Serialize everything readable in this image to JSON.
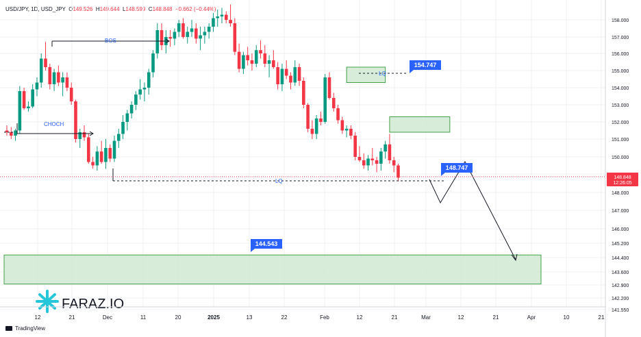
{
  "header": {
    "symbol": "USD/JPY, 1D, USD_JPY",
    "o_label": "O",
    "o_value": "149.526",
    "h_label": "H",
    "h_value": "149.644",
    "l_label": "L",
    "l_value": "148.599",
    "c_label": "C",
    "c_value": "148.848",
    "change": "−0.662 (−0.44%)"
  },
  "footer": {
    "brand": "TradingView"
  },
  "watermark": {
    "text": "FARAZ.IO"
  },
  "colors": {
    "bull": "#089981",
    "bear": "#f23645",
    "zone_fill": "#c8e6c9",
    "zone_stroke": "#43a047",
    "tag": "#2962ff",
    "text_blue": "#2962ff"
  },
  "chart_data": {
    "type": "candlestick",
    "x_ticks": [
      "12",
      "21",
      "Dec",
      "11",
      "20",
      "2025",
      "13",
      "22",
      "Feb",
      "12",
      "21",
      "Mar",
      "12",
      "21",
      "Apr",
      "10",
      "21"
    ],
    "y_ticks": [
      "158.000",
      "157.000",
      "156.000",
      "155.000",
      "154.000",
      "153.000",
      "152.000",
      "151.000",
      "150.000",
      "149.000",
      "148.000",
      "147.000",
      "146.000",
      "145.200",
      "144.400",
      "143.600",
      "142.900",
      "142.200",
      "141.550"
    ],
    "current_price": "148.848",
    "countdown": "12:26:05",
    "annotations": {
      "bos": "BOS",
      "choch": "CHOCH",
      "lq_low": "LQ",
      "lq_high": "LQ",
      "tag_high": "154.747",
      "tag_current": "148.747",
      "tag_target": "144.543"
    },
    "candles": [
      [
        151.5,
        151.8,
        151.2,
        151.4
      ],
      [
        151.4,
        151.7,
        151.0,
        151.2
      ],
      [
        151.2,
        151.6,
        150.9,
        151.5
      ],
      [
        151.5,
        154.1,
        151.3,
        153.8
      ],
      [
        153.8,
        154.0,
        152.7,
        152.8
      ],
      [
        152.8,
        153.2,
        152.6,
        152.9
      ],
      [
        152.9,
        154.2,
        152.8,
        153.9
      ],
      [
        153.9,
        154.6,
        153.5,
        154.3
      ],
      [
        154.3,
        156.0,
        154.0,
        155.7
      ],
      [
        155.7,
        156.7,
        155.0,
        155.2
      ],
      [
        155.2,
        155.4,
        153.9,
        154.2
      ],
      [
        154.2,
        155.1,
        153.8,
        154.9
      ],
      [
        154.9,
        155.3,
        154.1,
        154.3
      ],
      [
        154.3,
        154.9,
        153.5,
        154.6
      ],
      [
        154.6,
        154.9,
        153.8,
        154.0
      ],
      [
        154.0,
        154.3,
        153.0,
        153.2
      ],
      [
        153.2,
        153.3,
        150.8,
        151.0
      ],
      [
        151.0,
        151.6,
        150.5,
        151.4
      ],
      [
        151.4,
        151.8,
        150.9,
        151.1
      ],
      [
        151.1,
        151.3,
        149.6,
        149.7
      ],
      [
        149.7,
        150.0,
        149.3,
        149.5
      ],
      [
        149.5,
        150.6,
        149.2,
        150.3
      ],
      [
        150.3,
        150.9,
        149.6,
        149.7
      ],
      [
        149.7,
        151.0,
        149.3,
        150.5
      ],
      [
        150.5,
        150.7,
        149.7,
        149.9
      ],
      [
        149.9,
        151.2,
        149.7,
        150.9
      ],
      [
        150.9,
        151.6,
        150.5,
        151.3
      ],
      [
        151.3,
        152.4,
        151.0,
        152.0
      ],
      [
        152.0,
        152.7,
        151.5,
        152.5
      ],
      [
        152.5,
        153.2,
        152.2,
        153.0
      ],
      [
        153.0,
        153.8,
        152.7,
        153.6
      ],
      [
        153.6,
        154.5,
        153.3,
        153.9
      ],
      [
        153.9,
        154.3,
        153.2,
        154.0
      ],
      [
        154.0,
        155.1,
        153.6,
        154.9
      ],
      [
        154.9,
        156.2,
        154.6,
        156.0
      ],
      [
        156.0,
        157.8,
        155.7,
        157.4
      ],
      [
        157.4,
        157.8,
        156.2,
        156.5
      ],
      [
        156.5,
        157.4,
        156.0,
        157.0
      ],
      [
        157.0,
        157.4,
        156.4,
        156.9
      ],
      [
        156.9,
        157.5,
        156.5,
        157.3
      ],
      [
        157.3,
        158.0,
        157.0,
        157.8
      ],
      [
        157.8,
        158.1,
        156.9,
        157.0
      ],
      [
        157.0,
        157.6,
        156.6,
        157.3
      ],
      [
        157.3,
        158.0,
        157.0,
        157.5
      ],
      [
        157.5,
        157.8,
        156.6,
        156.9
      ],
      [
        156.9,
        157.6,
        156.2,
        157.1
      ],
      [
        157.1,
        157.6,
        156.6,
        157.3
      ],
      [
        157.3,
        157.8,
        156.9,
        157.6
      ],
      [
        157.6,
        158.4,
        157.3,
        158.1
      ],
      [
        158.1,
        158.6,
        157.6,
        158.2
      ],
      [
        158.2,
        158.7,
        157.8,
        158.3
      ],
      [
        158.3,
        158.5,
        157.8,
        158.0
      ],
      [
        158.0,
        158.9,
        157.6,
        157.8
      ],
      [
        157.8,
        158.1,
        155.9,
        156.1
      ],
      [
        156.1,
        156.6,
        154.9,
        155.1
      ],
      [
        155.1,
        156.1,
        154.8,
        155.9
      ],
      [
        155.9,
        156.4,
        155.3,
        155.6
      ],
      [
        155.6,
        156.0,
        155.0,
        155.4
      ],
      [
        155.4,
        156.5,
        155.2,
        156.2
      ],
      [
        156.2,
        156.8,
        155.7,
        156.0
      ],
      [
        156.0,
        156.5,
        155.2,
        155.4
      ],
      [
        155.4,
        155.9,
        154.6,
        155.6
      ],
      [
        155.6,
        156.2,
        155.1,
        155.2
      ],
      [
        155.2,
        155.5,
        153.9,
        154.2
      ],
      [
        154.2,
        155.4,
        153.8,
        155.1
      ],
      [
        155.1,
        155.6,
        154.5,
        154.7
      ],
      [
        154.7,
        154.9,
        153.9,
        154.3
      ],
      [
        154.3,
        155.6,
        154.1,
        155.2
      ],
      [
        155.2,
        155.4,
        154.1,
        154.4
      ],
      [
        154.4,
        154.6,
        152.8,
        153.0
      ],
      [
        153.0,
        153.1,
        151.4,
        151.6
      ],
      [
        151.6,
        152.1,
        151.0,
        151.3
      ],
      [
        151.3,
        152.4,
        151.0,
        152.2
      ],
      [
        152.2,
        152.6,
        151.8,
        152.0
      ],
      [
        152.0,
        154.8,
        151.9,
        154.6
      ],
      [
        154.6,
        154.9,
        153.3,
        153.4
      ],
      [
        153.4,
        153.7,
        152.6,
        152.8
      ],
      [
        152.8,
        153.0,
        151.9,
        152.1
      ],
      [
        152.1,
        152.3,
        151.3,
        151.5
      ],
      [
        151.5,
        151.8,
        151.1,
        151.6
      ],
      [
        151.6,
        151.8,
        151.0,
        151.2
      ],
      [
        151.2,
        151.4,
        149.8,
        150.0
      ],
      [
        150.0,
        150.6,
        149.7,
        149.8
      ],
      [
        149.8,
        150.2,
        149.3,
        149.5
      ],
      [
        149.5,
        150.1,
        149.2,
        149.9
      ],
      [
        149.9,
        150.5,
        149.5,
        149.8
      ],
      [
        149.8,
        150.0,
        149.1,
        149.6
      ],
      [
        149.6,
        150.5,
        149.2,
        150.3
      ],
      [
        150.3,
        150.9,
        149.9,
        150.7
      ],
      [
        150.7,
        151.3,
        149.6,
        149.8
      ],
      [
        149.8,
        150.0,
        149.1,
        149.5
      ],
      [
        149.5,
        149.6,
        148.6,
        148.8
      ]
    ],
    "zones": [
      {
        "top": 155.2,
        "bottom": 154.3,
        "from": 79,
        "to": 88
      },
      {
        "top": 152.3,
        "bottom": 151.4,
        "from": 89,
        "to": 103
      },
      {
        "top": 144.543,
        "bottom": 142.95,
        "from": 0,
        "to": 127
      }
    ],
    "projection": [
      [
        91,
        148.85
      ],
      [
        93,
        147.55
      ],
      [
        97,
        149.95
      ],
      [
        108,
        144.4
      ]
    ]
  }
}
